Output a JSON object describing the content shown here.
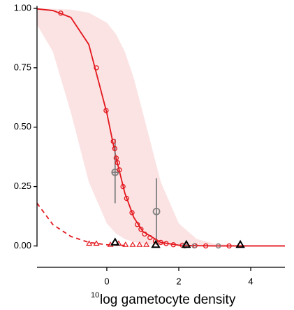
{
  "chart_data": {
    "type": "line",
    "x_label": {
      "superscript": "10",
      "text": "log gametocyte density"
    },
    "xlim": [
      -1.94,
      4.95
    ],
    "ylim": [
      -0.09,
      1.01
    ],
    "xticks": [
      0,
      2,
      4
    ],
    "yticks": [
      {
        "value": 0,
        "label": "0.00"
      },
      {
        "value": 0.25,
        "label": "0.25"
      },
      {
        "value": 0.5,
        "label": "0.50"
      },
      {
        "value": 0.75,
        "label": "0.75"
      },
      {
        "value": 1,
        "label": "1.00"
      }
    ],
    "band": {
      "color": "#fbe3e3",
      "x": [
        -1.94,
        -1.5,
        -1,
        -0.5,
        0,
        0.25,
        0.5,
        0.75,
        1,
        1.5,
        2,
        2.5,
        3,
        4,
        4.95
      ],
      "upper": [
        1.0,
        0.998,
        0.995,
        0.982,
        0.94,
        0.893,
        0.818,
        0.706,
        0.562,
        0.269,
        0.095,
        0.029,
        0.009,
        0.001,
        0
      ],
      "lower": [
        0.931,
        0.818,
        0.562,
        0.269,
        0.095,
        0.053,
        0.029,
        0.016,
        0.009,
        0.003,
        0.001,
        0,
        0,
        0,
        0
      ]
    },
    "curves": [
      {
        "color": "#e3161c",
        "dash": false,
        "x": [
          -1.94,
          -1.5,
          -1,
          -0.5,
          0,
          0.25,
          0.5,
          0.75,
          1,
          1.5,
          2,
          2.5,
          3,
          4,
          4.95
        ],
        "y": [
          0.998,
          0.991,
          0.962,
          0.848,
          0.56,
          0.376,
          0.223,
          0.12,
          0.061,
          0.015,
          0.003,
          0.001,
          0,
          0,
          0
        ]
      },
      {
        "color": "#e3161c",
        "dash": true,
        "x": [
          -1.94,
          -1.5,
          -1,
          -0.5,
          0,
          0.5
        ],
        "y": [
          0.18,
          0.09,
          0.04,
          0.015,
          0.005,
          0.002
        ]
      }
    ],
    "points": [
      {
        "marker": "circle",
        "color": "#e3161c",
        "x": [
          -1.28,
          -0.29,
          -0.02,
          0.18,
          0.22,
          0.26,
          0.3,
          0.35,
          0.45,
          0.55,
          0.7,
          0.85,
          0.95,
          1.05,
          1.2,
          1.35,
          1.5,
          1.65,
          1.85,
          2.1,
          2.45,
          2.75,
          3.1,
          3.4
        ],
        "y": [
          0.98,
          0.75,
          0.57,
          0.44,
          0.41,
          0.37,
          0.35,
          0.32,
          0.25,
          0.2,
          0.14,
          0.09,
          0.07,
          0.05,
          0.035,
          0.02,
          0.015,
          0.01,
          0.005,
          0.003,
          0.001,
          0,
          0,
          0
        ]
      },
      {
        "marker": "triangle",
        "color": "#e3161c",
        "x": [
          -0.49,
          -0.29,
          0.1,
          0.33,
          0.52,
          0.72,
          0.91,
          1.1
        ],
        "y": [
          0.01,
          0.01,
          0.005,
          0.01,
          0.005,
          0.005,
          0.005,
          0.005
        ]
      },
      {
        "marker": "circle",
        "color": "#808080",
        "x": [
          2.17,
          2.43,
          3.1
        ],
        "y": [
          0,
          0,
          0
        ]
      },
      {
        "marker": "triangle-bold",
        "color": "#000000",
        "x": [
          0.23,
          1.36,
          2.21,
          3.71
        ],
        "y": [
          0.015,
          0.005,
          0.005,
          0.005
        ]
      }
    ],
    "errorbars": {
      "color": "#808080",
      "x": [
        0.23,
        1.38
      ],
      "y": [
        0.31,
        0.145
      ],
      "ylow": [
        0.18,
        0.005
      ],
      "yhigh": [
        0.45,
        0.285
      ],
      "xlow": [
        0.13,
        1.38
      ],
      "xhigh": [
        0.36,
        1.38
      ]
    }
  }
}
